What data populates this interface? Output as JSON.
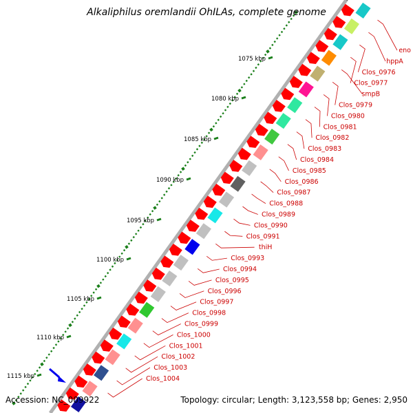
{
  "title": "Alkaliphilus oremlandii OhILAs, complete genome",
  "accession": "Accession: NC_009922",
  "topology": "Topology: circular; Length: 3,123,558 bp; Genes: 2,950",
  "kbp_labels": [
    "1075 kbp",
    "1080 kbp",
    "1085 kbp",
    "1090 kbp",
    "1095 kbp",
    "1100 kbp",
    "1105 kbp",
    "1110 kbp",
    "1115 kbp"
  ],
  "gene_labels": [
    "eno",
    "hppA",
    "Clos_0976",
    "Clos_0977",
    "smpB",
    "Clos_0979",
    "Clos_0980",
    "Clos_0981",
    "Clos_0982",
    "Clos_0983",
    "Clos_0984",
    "Clos_0985",
    "Clos_0986",
    "Clos_0987",
    "Clos_0988",
    "Clos_0989",
    "Clos_0990",
    "Clos_0991",
    "thiH",
    "Clos_0993",
    "Clos_0994",
    "Clos_0995",
    "Clos_0996",
    "Clos_0997",
    "Clos_0998",
    "Clos_0999",
    "Clos_1000",
    "Clos_1001",
    "Clos_1002",
    "Clos_1003",
    "Clos_1004"
  ],
  "colors": {
    "forward_cds": "#ff0000",
    "label": "#cc0000",
    "tick": "#1a7f1a",
    "backbone": "#999999"
  },
  "reverse_track_colors": [
    "#18c8c8",
    "#c8f064",
    "#18c8c8",
    "#ff8c00",
    "#c0b070",
    "#ff1493",
    "#30e8a0",
    "#30e8a0",
    "#40c840",
    "#ff9090",
    "#c0c0c0",
    "#606060",
    "#c0c0c0",
    "#18e8e8",
    "#c0c0c0",
    "#0000ee",
    "#c0c0c0",
    "#c0c0c0",
    "#c0c0c0",
    "#30c830",
    "#ff9090",
    "#18e8e8",
    "#ff9090",
    "#305090",
    "#ff9090",
    "#1010a0"
  ]
}
